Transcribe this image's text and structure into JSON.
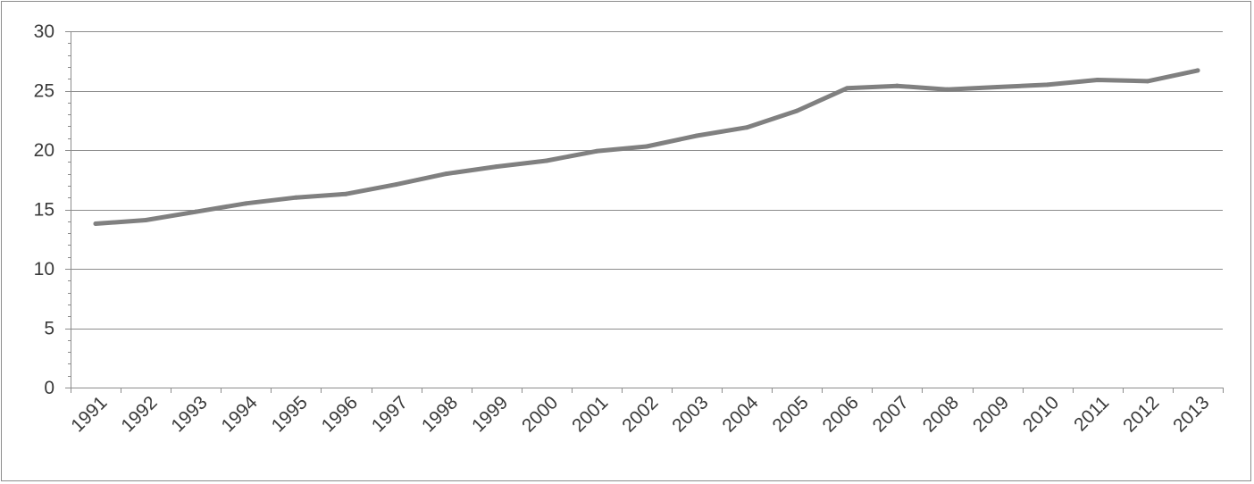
{
  "chart_data": {
    "type": "line",
    "title": "",
    "xlabel": "",
    "ylabel": "",
    "ylim": [
      0,
      30
    ],
    "yticks": [
      0,
      5,
      10,
      15,
      20,
      25,
      30
    ],
    "grid": true,
    "legend": "none",
    "categories": [
      "1991",
      "1992",
      "1993",
      "1994",
      "1995",
      "1996",
      "1997",
      "1998",
      "1999",
      "2000",
      "2001",
      "2002",
      "2003",
      "2004",
      "2005",
      "2006",
      "2007",
      "2008",
      "2009",
      "2010",
      "2011",
      "2012",
      "2013"
    ],
    "series": [
      {
        "values": [
          13.8,
          14.1,
          14.8,
          15.5,
          16.0,
          16.3,
          17.1,
          18.0,
          18.6,
          19.1,
          19.9,
          20.3,
          21.2,
          21.9,
          23.3,
          25.2,
          25.4,
          25.1,
          25.3,
          25.5,
          25.9,
          25.8,
          26.7
        ],
        "color": "#808080"
      }
    ]
  }
}
